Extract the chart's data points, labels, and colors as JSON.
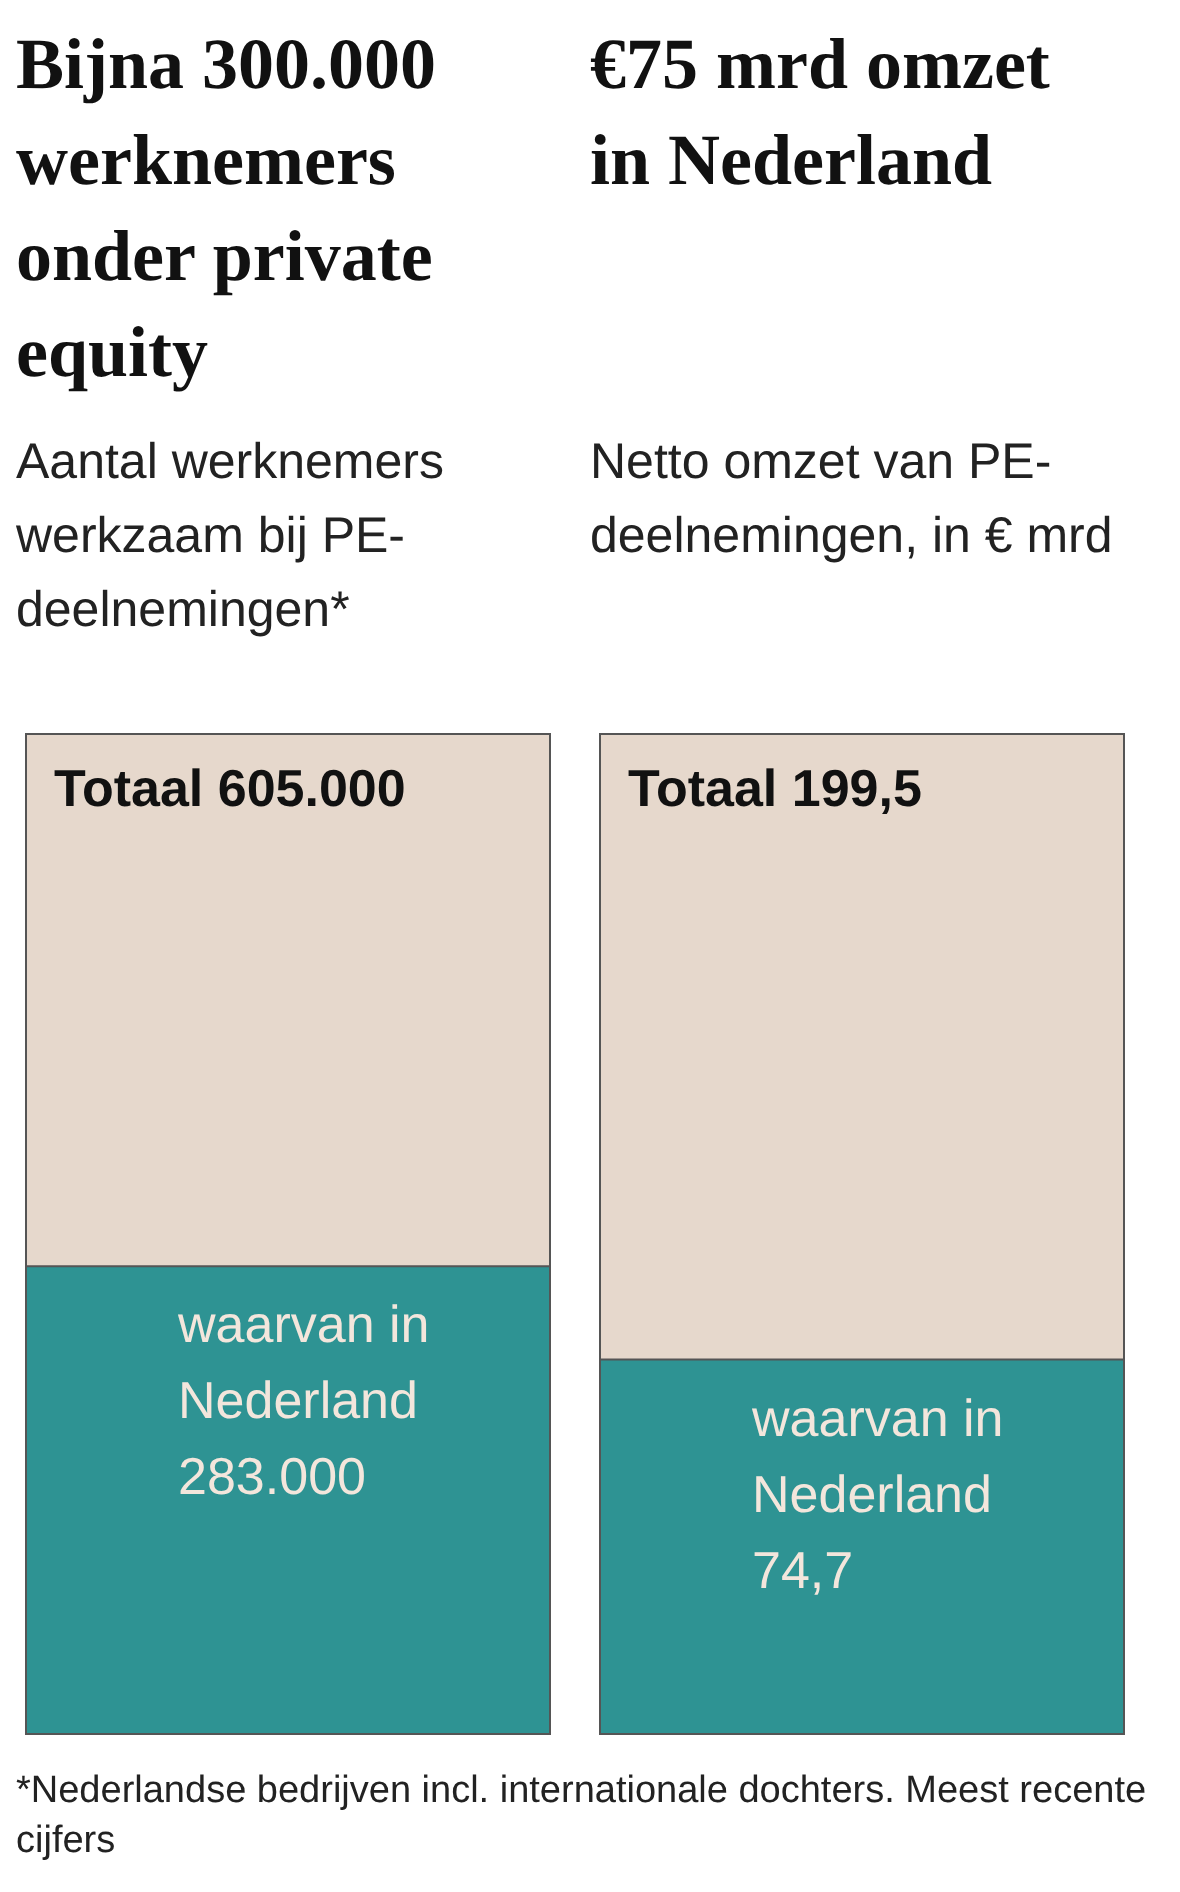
{
  "chart_data": [
    {
      "type": "other",
      "title": "Bijna 300.000 werknemers onder private equity",
      "subtitle": "Aantal werknemers werkzaam bij PE-deelnemingen*",
      "categories": [
        "Totaal",
        "waarvan in Nederland"
      ],
      "values": [
        605000,
        283000
      ],
      "value_labels": [
        "605.000",
        "283.000"
      ],
      "colors": [
        "#e6d8cc",
        "#2e9393"
      ],
      "annotations": [
        "*Nederlandse bedrijven incl. internationale dochters. Meest recente cijfers"
      ]
    },
    {
      "type": "other",
      "title": "€75 mrd omzet in Nederland",
      "subtitle": "Netto omzet van PE-deelnemingen, in € mrd",
      "categories": [
        "Totaal",
        "waarvan in Nederland"
      ],
      "values": [
        199.5,
        74.7
      ],
      "value_labels": [
        "199,5",
        "74,7"
      ],
      "colors": [
        "#e6d8cc",
        "#2e9393"
      ]
    }
  ]
}
